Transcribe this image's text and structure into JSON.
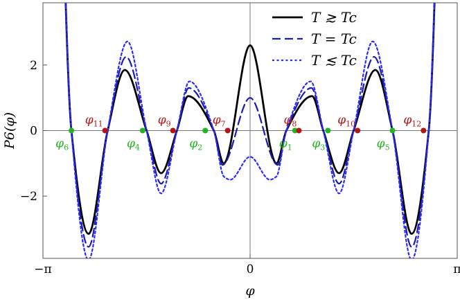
{
  "chart_data": {
    "type": "line",
    "xlabel": "φ",
    "ylabel": "P6(φ)",
    "xlim": [
      -3.1416,
      3.1416
    ],
    "ylim": [
      -3.9,
      3.9
    ],
    "x_ticks": [
      {
        "value": -3.1416,
        "label": "−π"
      },
      {
        "value": 0,
        "label": "0"
      },
      {
        "value": 3.1416,
        "label": "π"
      }
    ],
    "y_ticks": [
      {
        "value": -2,
        "label": "−2"
      },
      {
        "value": 0,
        "label": "0"
      },
      {
        "value": 2,
        "label": "2"
      }
    ],
    "legend": {
      "position": "top-right"
    },
    "series": [
      {
        "name": "T ≳ Tc",
        "style": "solid",
        "color": "#000000",
        "x": [
          -2.71,
          -2.45,
          -2.16,
          -1.9,
          -1.57,
          -1.35,
          -1.11,
          -0.94,
          -0.55,
          -0.4,
          0.0,
          0.4,
          0.55,
          0.94,
          1.11,
          1.35,
          1.57,
          1.9,
          2.16,
          2.45,
          2.71
        ],
        "y": [
          0,
          -3.15,
          0,
          1.85,
          0,
          -1.3,
          0,
          1.05,
          0,
          -1.0,
          2.6,
          -1.0,
          0,
          1.05,
          0,
          -1.3,
          0,
          1.85,
          0,
          -3.15,
          0
        ]
      },
      {
        "name": "T = Tc",
        "style": "dashed",
        "color": "#1a1ab4",
        "x": [
          -2.71,
          -2.45,
          -2.16,
          -1.88,
          -1.57,
          -1.35,
          -1.11,
          -0.93,
          -0.55,
          -0.42,
          0.0,
          0.42,
          0.55,
          0.93,
          1.11,
          1.35,
          1.57,
          1.88,
          2.16,
          2.45,
          2.71
        ],
        "y": [
          0,
          -3.55,
          0,
          2.25,
          0,
          -1.62,
          0,
          1.3,
          0,
          -1.05,
          1.0,
          -1.05,
          0,
          1.3,
          0,
          -1.62,
          0,
          2.25,
          0,
          -3.55,
          0
        ]
      },
      {
        "name": "T ≲ Tc",
        "style": "dotted",
        "color": "#2b2bff",
        "x": [
          -2.71,
          -2.45,
          -2.16,
          -1.86,
          -1.57,
          -1.35,
          -1.11,
          -0.92,
          -0.55,
          -0.4,
          -0.3,
          0.0,
          0.3,
          0.4,
          0.55,
          0.92,
          1.11,
          1.35,
          1.57,
          1.86,
          2.16,
          2.45,
          2.71
        ],
        "y": [
          0,
          -3.95,
          0,
          2.72,
          0,
          -1.92,
          0,
          1.5,
          0,
          -1.4,
          -1.5,
          -0.8,
          -1.5,
          -1.4,
          0,
          1.5,
          0,
          -1.92,
          0,
          2.72,
          0,
          -3.95,
          0
        ]
      }
    ],
    "roots": [
      {
        "x": 0.68,
        "label": "φ",
        "sub": "1",
        "group": "green"
      },
      {
        "x": -0.68,
        "label": "φ",
        "sub": "2",
        "group": "green"
      },
      {
        "x": 1.18,
        "label": "φ",
        "sub": "3",
        "group": "green"
      },
      {
        "x": -1.63,
        "label": "φ",
        "sub": "4",
        "group": "green"
      },
      {
        "x": 2.16,
        "label": "φ",
        "sub": "5",
        "group": "green"
      },
      {
        "x": -2.71,
        "label": "φ",
        "sub": "6",
        "group": "green"
      },
      {
        "x": -0.34,
        "label": "φ",
        "sub": "7",
        "group": "red"
      },
      {
        "x": 0.74,
        "label": "φ",
        "sub": "8",
        "group": "red"
      },
      {
        "x": -1.17,
        "label": "φ",
        "sub": "9",
        "group": "red"
      },
      {
        "x": 1.63,
        "label": "φ",
        "sub": "10",
        "group": "red"
      },
      {
        "x": -2.2,
        "label": "φ",
        "sub": "11",
        "group": "red"
      },
      {
        "x": 2.63,
        "label": "φ",
        "sub": "12",
        "group": "red"
      }
    ],
    "colors": {
      "green": "#22b422",
      "red": "#b41414"
    }
  }
}
